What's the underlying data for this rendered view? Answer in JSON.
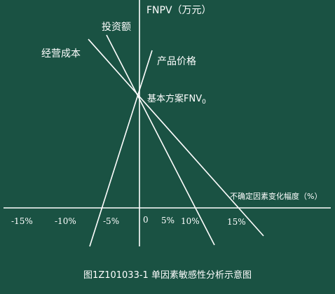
{
  "diagram": {
    "y_axis_label": "FNPV（万元）",
    "x_axis_label": "不确定因素变化幅度（%）",
    "base_case_label": "基本方案FNV",
    "base_case_subscript": "0",
    "curves": {
      "investment": "投资额",
      "operating_cost": "经营成本",
      "product_price": "产品价格"
    },
    "ticks": {
      "neg15": "-15%",
      "neg10": "-10%",
      "neg5": "-5%",
      "zero": "0",
      "pos5": "5%",
      "pos10": "10%",
      "pos15": "15%"
    },
    "caption": "图1Z101033-1  单因素敏感性分析示意图"
  },
  "colors": {
    "background": "#1a5243",
    "ink": "#ffffff"
  }
}
